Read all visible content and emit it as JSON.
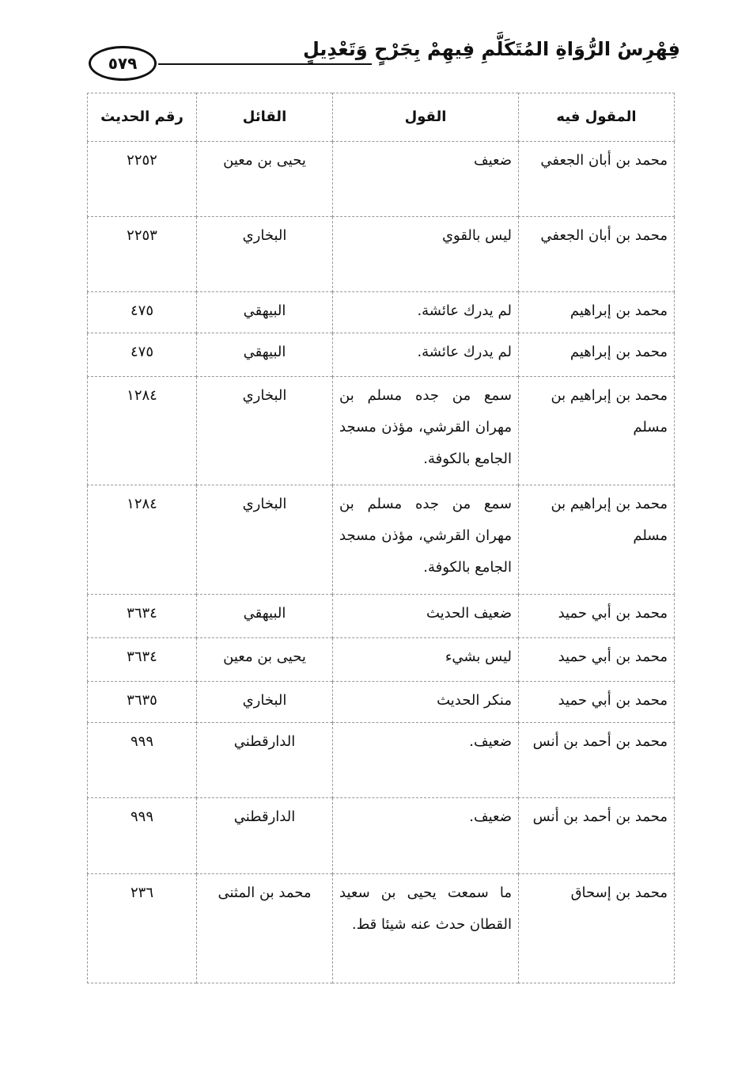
{
  "header": {
    "title": "فِهْرِسُ الرُّوَاةِ المُتَكَلَّمِ فِيهِمْ بِجَرْحٍ وَتَعْدِيلٍ",
    "page_number": "٥٧٩"
  },
  "table": {
    "columns": [
      "المقول فيه",
      "القول",
      "القائل",
      "رقم الحديث"
    ],
    "rows": [
      {
        "subject": "محمد بن أبان الجعفي",
        "saying": "ضعيف",
        "sayer": "يحيى بن معين",
        "hadith": "٢٢٥٢"
      },
      {
        "subject": "محمد بن أبان الجعفي",
        "saying": "ليس بالقوي",
        "sayer": "البخاري",
        "hadith": "٢٢٥٣"
      },
      {
        "subject": "محمد بن إبراهيم",
        "saying": "لم يدرك عائشة.",
        "sayer": "البيهقي",
        "hadith": "٤٧٥"
      },
      {
        "subject": "محمد بن إبراهيم",
        "saying": "لم يدرك عائشة.",
        "sayer": "البيهقي",
        "hadith": "٤٧٥"
      },
      {
        "subject": "محمد بن إبراهيم بن مسلم",
        "saying": "سمع من جده مسلم بن مهران القرشي، مؤذن مسجد الجامع بالكوفة.",
        "sayer": "البخاري",
        "hadith": "١٢٨٤"
      },
      {
        "subject": "محمد بن إبراهيم بن مسلم",
        "saying": "سمع من جده مسلم بن مهران القرشي، مؤذن مسجد الجامع بالكوفة.",
        "sayer": "البخاري",
        "hadith": "١٢٨٤"
      },
      {
        "subject": "محمد بن أبي حميد",
        "saying": "ضعيف الحديث",
        "sayer": "البيهقي",
        "hadith": "٣٦٣٤"
      },
      {
        "subject": "محمد بن أبي حميد",
        "saying": "ليس بشيء",
        "sayer": "يحيى بن معين",
        "hadith": "٣٦٣٤"
      },
      {
        "subject": "محمد بن أبي حميد",
        "saying": "منكر الحديث",
        "sayer": "البخاري",
        "hadith": "٣٦٣٥"
      },
      {
        "subject": "محمد بن أحمد بن أنس",
        "saying": "ضعيف.",
        "sayer": "الدارقطني",
        "hadith": "٩٩٩"
      },
      {
        "subject": "محمد بن أحمد بن أنس",
        "saying": "ضعيف.",
        "sayer": "الدارقطني",
        "hadith": "٩٩٩"
      },
      {
        "subject": "محمد بن إسحاق",
        "saying": "ما سمعت يحيى بن سعيد القطان حدث عنه شيئا قط.",
        "sayer": "محمد بن المثنى",
        "hadith": "٢٣٦"
      }
    ]
  }
}
